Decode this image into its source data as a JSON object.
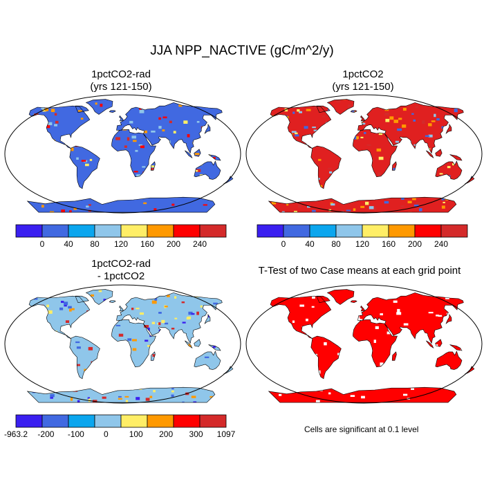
{
  "figure": {
    "title": "JJA NPP_NACTIVE (gC/m^2/y)"
  },
  "panels": [
    {
      "id": "p1",
      "title_line1": "1pctCO2-rad",
      "title_line2": "(yrs 121-150)",
      "fill": "#4169e1",
      "hot_colors": [
        "#ffee66",
        "#ff9900",
        "#ff0000",
        "#d42a2a",
        "#8fc6ea"
      ],
      "hot_density": 0.22
    },
    {
      "id": "p2",
      "title_line1": "1pctCO2",
      "title_line2": "(yrs 121-150)",
      "fill": "#e02020",
      "hot_colors": [
        "#4169e1",
        "#8fc6ea",
        "#ffee66",
        "#ff9900",
        "#d42a2a"
      ],
      "hot_density": 0.35
    },
    {
      "id": "p3",
      "title_line1": "1pctCO2-rad",
      "title_line2": "- 1pctCO2",
      "fill": "#8fc6ea",
      "hot_colors": [
        "#4169e1",
        "#3a1ff0",
        "#ffee66",
        "#ff9900",
        "#d42a2a"
      ],
      "hot_density": 0.3
    },
    {
      "id": "p4",
      "title_line1": "T-Test of two Case means at each grid point",
      "title_line2": "",
      "fill": "#ff0000",
      "hot_colors": [
        "#ffffff"
      ],
      "hot_density": 0.12
    }
  ],
  "colorbars": [
    {
      "id": "cb1",
      "colors": [
        "#3a1ff0",
        "#4169e1",
        "#0ba6ee",
        "#8fc6ea",
        "#ffee66",
        "#ff9900",
        "#ff0000",
        "#d42a2a"
      ],
      "labels": [
        "0",
        "40",
        "80",
        "120",
        "160",
        "200",
        "240"
      ]
    },
    {
      "id": "cb2",
      "colors": [
        "#3a1ff0",
        "#4169e1",
        "#0ba6ee",
        "#8fc6ea",
        "#ffee66",
        "#ff9900",
        "#ff0000",
        "#d42a2a"
      ],
      "labels": [
        "0",
        "40",
        "80",
        "120",
        "160",
        "200",
        "240"
      ]
    },
    {
      "id": "cb3",
      "colors": [
        "#3a1ff0",
        "#4169e1",
        "#0ba6ee",
        "#8fc6ea",
        "#ffee66",
        "#ff9900",
        "#ff0000",
        "#d42a2a"
      ],
      "labels": [
        "-963.2",
        "-200",
        "-100",
        "0",
        "100",
        "200",
        "300",
        "1097"
      ]
    }
  ],
  "note": "Cells are significant at 0.1 level"
}
